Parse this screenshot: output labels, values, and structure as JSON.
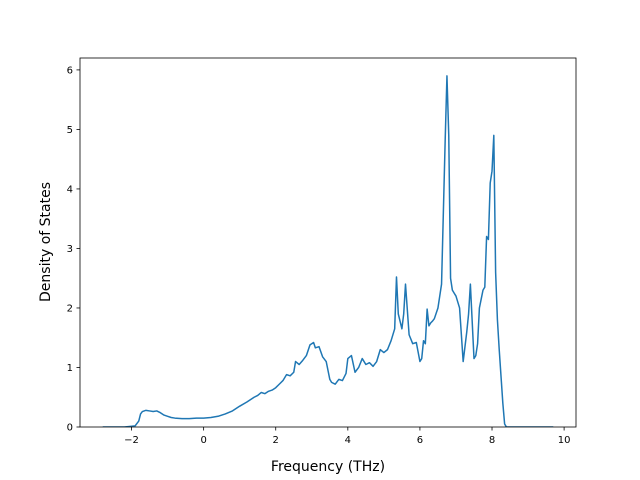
{
  "chart_data": {
    "type": "line",
    "title": "",
    "xlabel": "Frequency (THz)",
    "ylabel": "Density of States",
    "xlim": [
      -3.43,
      10.33
    ],
    "ylim": [
      0,
      6.2
    ],
    "xticks": [
      -2,
      0,
      2,
      4,
      6,
      8,
      10
    ],
    "xtick_labels": [
      "−2",
      "0",
      "2",
      "4",
      "6",
      "8",
      "10"
    ],
    "yticks": [
      0,
      1,
      2,
      3,
      4,
      5,
      6
    ],
    "ytick_labels": [
      "0",
      "1",
      "2",
      "3",
      "4",
      "5",
      "6"
    ],
    "grid": false,
    "legend": "none",
    "series": [
      {
        "color": "#1f77b4",
        "x": [
          -2.8,
          -2.2,
          -1.9,
          -1.8,
          -1.75,
          -1.7,
          -1.6,
          -1.5,
          -1.4,
          -1.3,
          -1.2,
          -1.1,
          -1.0,
          -0.9,
          -0.8,
          -0.6,
          -0.4,
          -0.2,
          0.0,
          0.2,
          0.4,
          0.6,
          0.8,
          1.0,
          1.2,
          1.4,
          1.5,
          1.6,
          1.7,
          1.8,
          1.9,
          2.0,
          2.1,
          2.2,
          2.3,
          2.4,
          2.5,
          2.55,
          2.65,
          2.75,
          2.85,
          2.95,
          3.05,
          3.1,
          3.2,
          3.3,
          3.4,
          3.5,
          3.55,
          3.65,
          3.75,
          3.85,
          3.95,
          4.0,
          4.1,
          4.2,
          4.3,
          4.4,
          4.5,
          4.6,
          4.7,
          4.8,
          4.9,
          5.0,
          5.1,
          5.2,
          5.3,
          5.35,
          5.4,
          5.5,
          5.55,
          5.6,
          5.7,
          5.8,
          5.9,
          6.0,
          6.05,
          6.1,
          6.15,
          6.2,
          6.25,
          6.3,
          6.35,
          6.4,
          6.5,
          6.6,
          6.7,
          6.75,
          6.8,
          6.85,
          6.9,
          6.95,
          7.0,
          7.1,
          7.2,
          7.3,
          7.35,
          7.4,
          7.5,
          7.55,
          7.6,
          7.65,
          7.7,
          7.75,
          7.8,
          7.85,
          7.9,
          7.95,
          8.0,
          8.05,
          8.1,
          8.15,
          8.2,
          8.3,
          8.35,
          8.4,
          8.45,
          8.5,
          8.6,
          8.7,
          8.8,
          9.0,
          9.7
        ],
        "y": [
          0.0,
          0.0,
          0.02,
          0.1,
          0.22,
          0.26,
          0.28,
          0.27,
          0.26,
          0.27,
          0.24,
          0.2,
          0.18,
          0.16,
          0.15,
          0.14,
          0.14,
          0.15,
          0.15,
          0.16,
          0.18,
          0.22,
          0.27,
          0.35,
          0.42,
          0.5,
          0.53,
          0.58,
          0.56,
          0.6,
          0.62,
          0.66,
          0.72,
          0.78,
          0.88,
          0.86,
          0.92,
          1.1,
          1.05,
          1.12,
          1.2,
          1.38,
          1.42,
          1.33,
          1.35,
          1.18,
          1.1,
          0.8,
          0.75,
          0.72,
          0.8,
          0.78,
          0.9,
          1.15,
          1.2,
          0.92,
          1.0,
          1.15,
          1.05,
          1.08,
          1.02,
          1.1,
          1.3,
          1.25,
          1.3,
          1.45,
          1.65,
          2.52,
          1.9,
          1.65,
          1.9,
          2.4,
          1.55,
          1.4,
          1.42,
          1.1,
          1.15,
          1.45,
          1.4,
          1.98,
          1.7,
          1.75,
          1.78,
          1.82,
          2.0,
          2.4,
          4.8,
          5.9,
          4.9,
          2.5,
          2.3,
          2.25,
          2.2,
          2.0,
          1.1,
          1.6,
          1.9,
          2.4,
          1.15,
          1.2,
          1.4,
          2.0,
          2.15,
          2.3,
          2.35,
          3.2,
          3.15,
          4.1,
          4.3,
          4.9,
          2.6,
          1.8,
          1.3,
          0.4,
          0.05,
          0.0,
          0.0,
          0.0,
          0.0,
          0.0,
          0.0,
          0.0,
          0.0
        ]
      }
    ]
  }
}
